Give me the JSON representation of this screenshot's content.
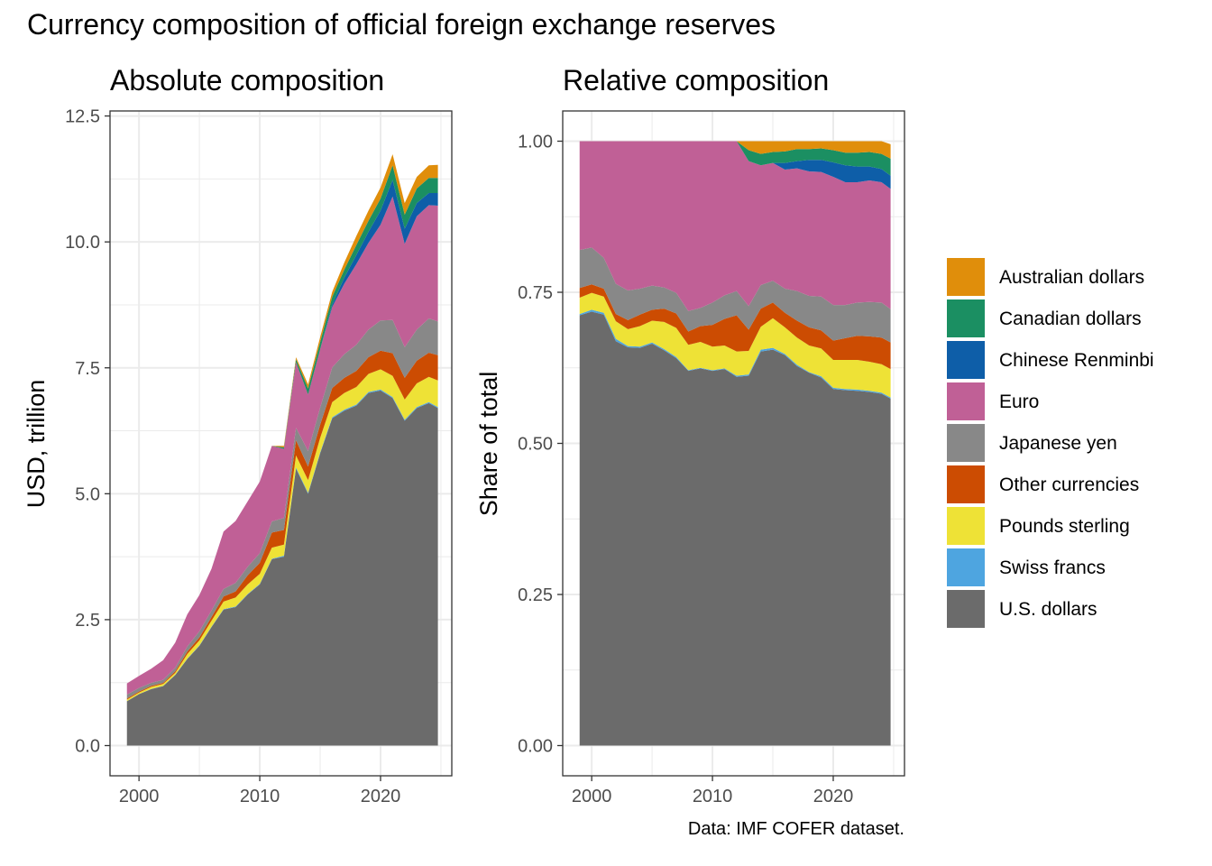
{
  "main_title": "Currency composition of official foreign exchange reserves",
  "caption": "Data: IMF COFER dataset.",
  "colors": {
    "U.S. dollars": "#6b6b6b",
    "Swiss francs": "#4ea5e0",
    "Pounds sterling": "#eee236",
    "Other currencies": "#cc4c02",
    "Japanese yen": "#888888",
    "Euro": "#c06096",
    "Chinese Renminbi": "#0e5ea8",
    "Canadian dollars": "#1b8f62",
    "Australian dollars": "#e08e0b"
  },
  "legend": {
    "items": [
      "Australian dollars",
      "Canadian dollars",
      "Chinese Renminbi",
      "Euro",
      "Japanese yen",
      "Other currencies",
      "Pounds sterling",
      "Swiss francs",
      "U.S. dollars"
    ]
  },
  "chart_data": [
    {
      "type": "area",
      "title": "Absolute composition",
      "xlabel": "",
      "ylabel": "USD, trillion",
      "xlim": [
        1997.6,
        2025.9
      ],
      "ylim": [
        -0.6,
        12.6
      ],
      "x_ticks": [
        2000,
        2010,
        2020
      ],
      "x_tick_labels": [
        "2000",
        "2010",
        "2020"
      ],
      "y_ticks": [
        0,
        2.5,
        5,
        7.5,
        10,
        12.5
      ],
      "y_tick_labels": [
        "0.0",
        "2.5",
        "5.0",
        "7.5",
        "10.0",
        "12.5"
      ],
      "grid": true,
      "x": [
        1999,
        2000,
        2001,
        2002,
        2003,
        2004,
        2005,
        2006,
        2007,
        2008,
        2009,
        2010,
        2011,
        2012,
        2013,
        2014,
        2015,
        2016,
        2017,
        2018,
        2019,
        2020,
        2021,
        2022,
        2023,
        2024,
        2024.75
      ],
      "series": [
        {
          "name": "U.S. dollars",
          "values": [
            0.88,
            1.02,
            1.12,
            1.18,
            1.4,
            1.72,
            1.98,
            2.35,
            2.7,
            2.75,
            3.0,
            3.2,
            3.7,
            3.75,
            5.5,
            5.0,
            5.8,
            6.5,
            6.65,
            6.75,
            7.0,
            7.05,
            6.9,
            6.45,
            6.7,
            6.8,
            6.7
          ]
        },
        {
          "name": "Swiss francs",
          "values": [
            0.003,
            0.003,
            0.004,
            0.005,
            0.005,
            0.007,
            0.008,
            0.009,
            0.01,
            0.01,
            0.01,
            0.01,
            0.01,
            0.02,
            0.02,
            0.02,
            0.02,
            0.02,
            0.02,
            0.02,
            0.02,
            0.02,
            0.02,
            0.02,
            0.02,
            0.02,
            0.02
          ]
        },
        {
          "name": "Pounds sterling",
          "values": [
            0.03,
            0.03,
            0.04,
            0.04,
            0.04,
            0.09,
            0.1,
            0.12,
            0.15,
            0.18,
            0.19,
            0.2,
            0.22,
            0.22,
            0.24,
            0.25,
            0.29,
            0.3,
            0.33,
            0.35,
            0.36,
            0.4,
            0.42,
            0.4,
            0.47,
            0.5,
            0.53
          ]
        },
        {
          "name": "Other currencies",
          "values": [
            0.02,
            0.02,
            0.02,
            0.02,
            0.03,
            0.05,
            0.06,
            0.07,
            0.1,
            0.12,
            0.18,
            0.22,
            0.3,
            0.29,
            0.3,
            0.27,
            0.26,
            0.28,
            0.3,
            0.32,
            0.33,
            0.37,
            0.45,
            0.43,
            0.45,
            0.48,
            0.5
          ]
        },
        {
          "name": "Japanese yen",
          "values": [
            0.08,
            0.07,
            0.06,
            0.06,
            0.07,
            0.1,
            0.12,
            0.13,
            0.15,
            0.17,
            0.17,
            0.19,
            0.22,
            0.24,
            0.25,
            0.31,
            0.34,
            0.41,
            0.47,
            0.52,
            0.55,
            0.6,
            0.66,
            0.61,
            0.62,
            0.68,
            0.67
          ]
        },
        {
          "name": "Euro",
          "values": [
            0.22,
            0.24,
            0.28,
            0.39,
            0.5,
            0.64,
            0.72,
            0.83,
            1.14,
            1.23,
            1.3,
            1.42,
            1.5,
            1.37,
            1.3,
            1.12,
            1.16,
            1.2,
            1.4,
            1.6,
            1.72,
            1.9,
            2.45,
            2.05,
            2.25,
            2.25,
            2.3
          ]
        },
        {
          "name": "Chinese Renminbi",
          "values": [
            0,
            0,
            0,
            0,
            0,
            0,
            0,
            0,
            0,
            0,
            0,
            0,
            0,
            0,
            0,
            0,
            0,
            0.05,
            0.12,
            0.18,
            0.22,
            0.28,
            0.33,
            0.3,
            0.26,
            0.24,
            0.25
          ]
        },
        {
          "name": "Canadian dollars",
          "values": [
            0,
            0,
            0,
            0,
            0,
            0,
            0,
            0,
            0,
            0,
            0,
            0,
            0,
            0.03,
            0.06,
            0.12,
            0.14,
            0.15,
            0.16,
            0.2,
            0.22,
            0.24,
            0.29,
            0.28,
            0.29,
            0.3,
            0.3
          ]
        },
        {
          "name": "Australian dollars",
          "values": [
            0,
            0,
            0,
            0,
            0,
            0,
            0,
            0,
            0,
            0,
            0,
            0,
            0,
            0.03,
            0.04,
            0.08,
            0.1,
            0.1,
            0.14,
            0.18,
            0.2,
            0.22,
            0.22,
            0.23,
            0.23,
            0.25,
            0.26
          ]
        }
      ]
    },
    {
      "type": "area",
      "title": "Relative composition",
      "xlabel": "",
      "ylabel": "Share of total",
      "xlim": [
        1997.6,
        2025.9
      ],
      "ylim": [
        -0.05,
        1.05
      ],
      "x_ticks": [
        2000,
        2010,
        2020
      ],
      "x_tick_labels": [
        "2000",
        "2010",
        "2020"
      ],
      "y_ticks": [
        0,
        0.25,
        0.5,
        0.75,
        1.0
      ],
      "y_tick_labels": [
        "0.00",
        "0.25",
        "0.50",
        "0.75",
        "1.00"
      ],
      "grid": true,
      "x": [
        1999,
        2000,
        2001,
        2002,
        2003,
        2004,
        2005,
        2006,
        2007,
        2008,
        2009,
        2010,
        2011,
        2012,
        2013,
        2014,
        2015,
        2016,
        2017,
        2018,
        2019,
        2020,
        2021,
        2022,
        2023,
        2024,
        2024.75
      ],
      "series": [
        {
          "name": "U.S. dollars",
          "values": [
            0.712,
            0.718,
            0.713,
            0.669,
            0.659,
            0.658,
            0.665,
            0.654,
            0.641,
            0.62,
            0.624,
            0.62,
            0.623,
            0.61,
            0.612,
            0.652,
            0.655,
            0.646,
            0.628,
            0.617,
            0.609,
            0.59,
            0.588,
            0.587,
            0.585,
            0.582,
            0.574
          ]
        },
        {
          "name": "Swiss francs",
          "values": [
            0.002,
            0.003,
            0.003,
            0.004,
            0.002,
            0.002,
            0.002,
            0.002,
            0.002,
            0.001,
            0.001,
            0.001,
            0.001,
            0.002,
            0.002,
            0.003,
            0.003,
            0.002,
            0.002,
            0.001,
            0.002,
            0.002,
            0.002,
            0.002,
            0.002,
            0.002,
            0.002
          ]
        },
        {
          "name": "Pounds sterling",
          "values": [
            0.027,
            0.028,
            0.027,
            0.029,
            0.028,
            0.034,
            0.036,
            0.045,
            0.048,
            0.042,
            0.043,
            0.039,
            0.038,
            0.04,
            0.039,
            0.038,
            0.049,
            0.044,
            0.045,
            0.044,
            0.046,
            0.046,
            0.048,
            0.049,
            0.048,
            0.047,
            0.047
          ]
        },
        {
          "name": "Other currencies",
          "values": [
            0.016,
            0.014,
            0.013,
            0.012,
            0.015,
            0.019,
            0.018,
            0.022,
            0.024,
            0.022,
            0.026,
            0.036,
            0.044,
            0.06,
            0.035,
            0.03,
            0.026,
            0.024,
            0.028,
            0.03,
            0.03,
            0.032,
            0.036,
            0.04,
            0.042,
            0.044,
            0.044
          ]
        },
        {
          "name": "Japanese yen",
          "values": [
            0.063,
            0.061,
            0.051,
            0.05,
            0.049,
            0.043,
            0.04,
            0.035,
            0.034,
            0.034,
            0.03,
            0.037,
            0.039,
            0.04,
            0.039,
            0.039,
            0.036,
            0.04,
            0.049,
            0.052,
            0.056,
            0.059,
            0.055,
            0.055,
            0.057,
            0.058,
            0.055
          ]
        },
        {
          "name": "Euro",
          "values": [
            0.18,
            0.176,
            0.193,
            0.236,
            0.247,
            0.244,
            0.239,
            0.242,
            0.251,
            0.281,
            0.276,
            0.267,
            0.255,
            0.248,
            0.24,
            0.198,
            0.195,
            0.197,
            0.203,
            0.206,
            0.206,
            0.212,
            0.203,
            0.199,
            0.201,
            0.199,
            0.199
          ]
        },
        {
          "name": "Chinese Renminbi",
          "values": [
            0,
            0,
            0,
            0,
            0,
            0,
            0,
            0,
            0,
            0,
            0,
            0,
            0,
            0,
            0,
            0,
            0,
            0.011,
            0.012,
            0.019,
            0.02,
            0.024,
            0.028,
            0.026,
            0.023,
            0.022,
            0.022
          ]
        },
        {
          "name": "Canadian dollars",
          "values": [
            0,
            0,
            0,
            0,
            0,
            0,
            0,
            0,
            0,
            0,
            0,
            0,
            0,
            0,
            0.018,
            0.019,
            0.018,
            0.019,
            0.02,
            0.018,
            0.019,
            0.02,
            0.021,
            0.023,
            0.024,
            0.025,
            0.028
          ]
        },
        {
          "name": "Australian dollars",
          "values": [
            0,
            0,
            0,
            0,
            0,
            0,
            0,
            0,
            0,
            0,
            0,
            0,
            0,
            0,
            0.015,
            0.021,
            0.018,
            0.017,
            0.013,
            0.013,
            0.012,
            0.015,
            0.019,
            0.019,
            0.018,
            0.021,
            0.024
          ]
        }
      ]
    }
  ]
}
